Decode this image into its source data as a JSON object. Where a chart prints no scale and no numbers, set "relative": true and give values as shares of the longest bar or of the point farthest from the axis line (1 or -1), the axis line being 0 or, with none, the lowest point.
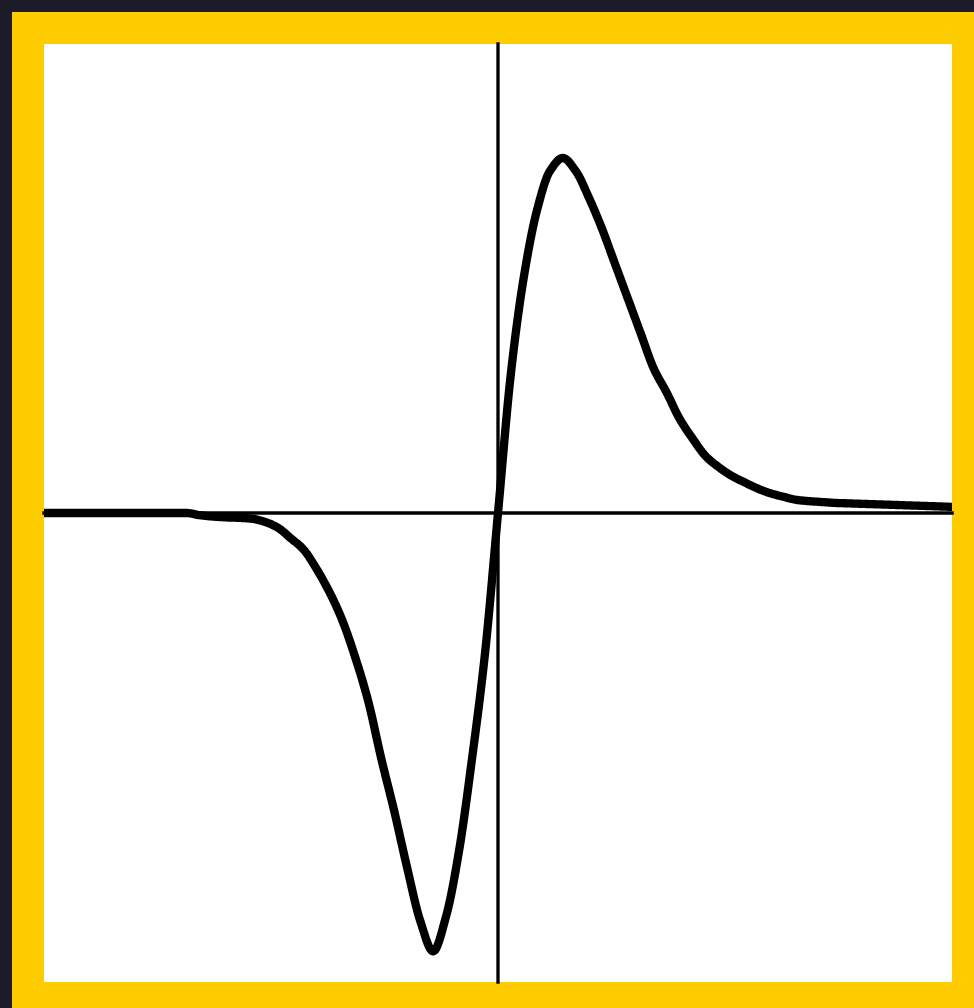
{
  "chart_data": {
    "type": "line",
    "relative": true,
    "tick_labels": false,
    "line_style": "solid",
    "categories": [
      null,
      null,
      null,
      null,
      null,
      null,
      null,
      null,
      null,
      null,
      null,
      null,
      null,
      null,
      null,
      null,
      null,
      null,
      null,
      null,
      null,
      null,
      null,
      null,
      null,
      null,
      null,
      null,
      null,
      null,
      null,
      null,
      null,
      null,
      null,
      null,
      null,
      null,
      null,
      null,
      null,
      null,
      null,
      null,
      null,
      null,
      null,
      null,
      null,
      null,
      null,
      null,
      null,
      null,
      null,
      null,
      null,
      null,
      null,
      null,
      null,
      null,
      null,
      null,
      null,
      null,
      null,
      null,
      null,
      null,
      null
    ],
    "series": [
      {
        "color": "#000000",
        "values": [
          0,
          0,
          0,
          0,
          0,
          0,
          0,
          0,
          0,
          0,
          0,
          0,
          -0.005,
          -0.008,
          -0.01,
          -0.011,
          -0.013,
          -0.02,
          -0.033,
          -0.057,
          -0.083,
          -0.127,
          -0.18,
          -0.245,
          -0.33,
          -0.43,
          -0.56,
          -0.68,
          -0.81,
          -0.93,
          -1,
          -0.92,
          -0.77,
          -0.56,
          -0.32,
          0,
          0.32,
          0.54,
          0.69,
          0.78,
          0.81,
          0.78,
          0.72,
          0.65,
          0.57,
          0.49,
          0.41,
          0.33,
          0.275,
          0.215,
          0.17,
          0.13,
          0.105,
          0.085,
          0.07,
          0.056,
          0.045,
          0.037,
          0.03,
          0.027,
          0.025,
          0.023,
          0.022,
          0.021,
          0.02,
          0.019,
          0.018,
          0.017,
          0.016,
          0.015,
          0.014
        ]
      }
    ]
  }
}
